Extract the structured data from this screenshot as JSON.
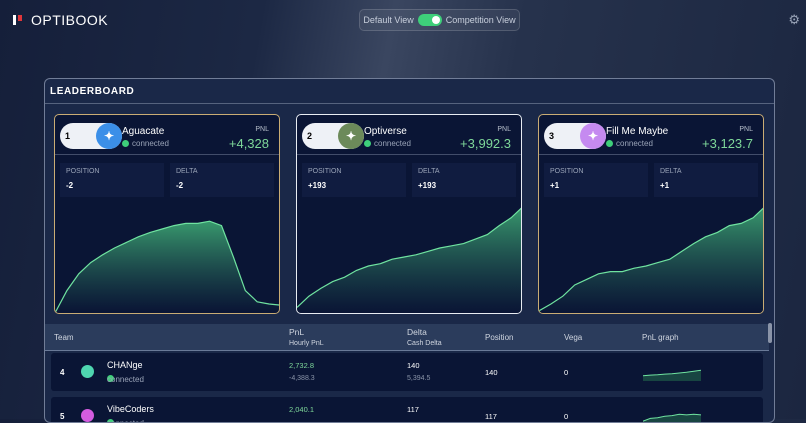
{
  "app": {
    "title": "OPTIBOOK"
  },
  "view_toggle": {
    "left": "Default View",
    "right": "Competition View",
    "on": true
  },
  "leaderboard": {
    "title": "LEADERBOARD",
    "top": [
      {
        "rank": "1",
        "team": "Aguacate",
        "status": "connected",
        "pnl_label": "PNL",
        "pnl": "+4,328",
        "position_label": "POSITION",
        "position": "-2",
        "delta_label": "DELTA",
        "delta": "-2",
        "avatar_color": "#3b8fe8",
        "icon": "target-icon",
        "border": "gold",
        "graph": [
          0,
          0.2,
          0.35,
          0.45,
          0.52,
          0.58,
          0.63,
          0.68,
          0.72,
          0.75,
          0.78,
          0.8,
          0.8,
          0.82,
          0.78,
          0.5,
          0.2,
          0.1,
          0.08,
          0.07
        ]
      },
      {
        "rank": "2",
        "team": "Optiverse",
        "status": "connected",
        "pnl_label": "PNL",
        "pnl": "+3,992.3",
        "position_label": "POSITION",
        "position": "+193",
        "delta_label": "DELTA",
        "delta": "+193",
        "avatar_color": "#6c8a5a",
        "icon": "optiverse-logo-icon",
        "border": "silver",
        "graph": [
          0.05,
          0.15,
          0.22,
          0.28,
          0.32,
          0.38,
          0.42,
          0.44,
          0.48,
          0.5,
          0.52,
          0.55,
          0.58,
          0.6,
          0.62,
          0.66,
          0.7,
          0.78,
          0.85,
          0.95
        ]
      },
      {
        "rank": "3",
        "team": "Fill Me Maybe",
        "status": "connected",
        "pnl_label": "PNL",
        "pnl": "+3,123.7",
        "position_label": "POSITION",
        "position": "+1",
        "delta_label": "DELTA",
        "delta": "+1",
        "avatar_color": "#c58af0",
        "icon": "sparkle-icon",
        "border": "gold",
        "graph": [
          0.02,
          0.08,
          0.15,
          0.25,
          0.3,
          0.35,
          0.37,
          0.37,
          0.4,
          0.42,
          0.45,
          0.48,
          0.55,
          0.62,
          0.68,
          0.72,
          0.78,
          0.8,
          0.85,
          0.95
        ]
      }
    ],
    "columns": {
      "team": "Team",
      "pnl": "PnL",
      "hourly_pnl": "Hourly PnL",
      "delta": "Delta",
      "cash_delta": "Cash Delta",
      "position": "Position",
      "vega": "Vega",
      "pnl_graph": "PnL graph"
    },
    "rows": [
      {
        "rank": "4",
        "team": "CHANge",
        "status": "connected",
        "pnl": "2,732.8",
        "hourly_pnl": "-4,388.3",
        "delta": "140",
        "cash_delta": "5,394.5",
        "position": "140",
        "vega": "0",
        "avatar_color": "#4fd6b0",
        "icon": "grid-icon",
        "graph": [
          0.3,
          0.35,
          0.38,
          0.42,
          0.45,
          0.5,
          0.55,
          0.62,
          0.7
        ]
      },
      {
        "rank": "5",
        "team": "VibeCoders",
        "status": "connected",
        "pnl": "2,040.1",
        "delta": "117",
        "position": "117",
        "vega": "0",
        "avatar_color": "#d45ce0",
        "icon": "vibe-icon",
        "graph": [
          0.2,
          0.4,
          0.45,
          0.55,
          0.6,
          0.7,
          0.65,
          0.7,
          0.65
        ]
      }
    ],
    "accent": "#3ecf7a"
  }
}
